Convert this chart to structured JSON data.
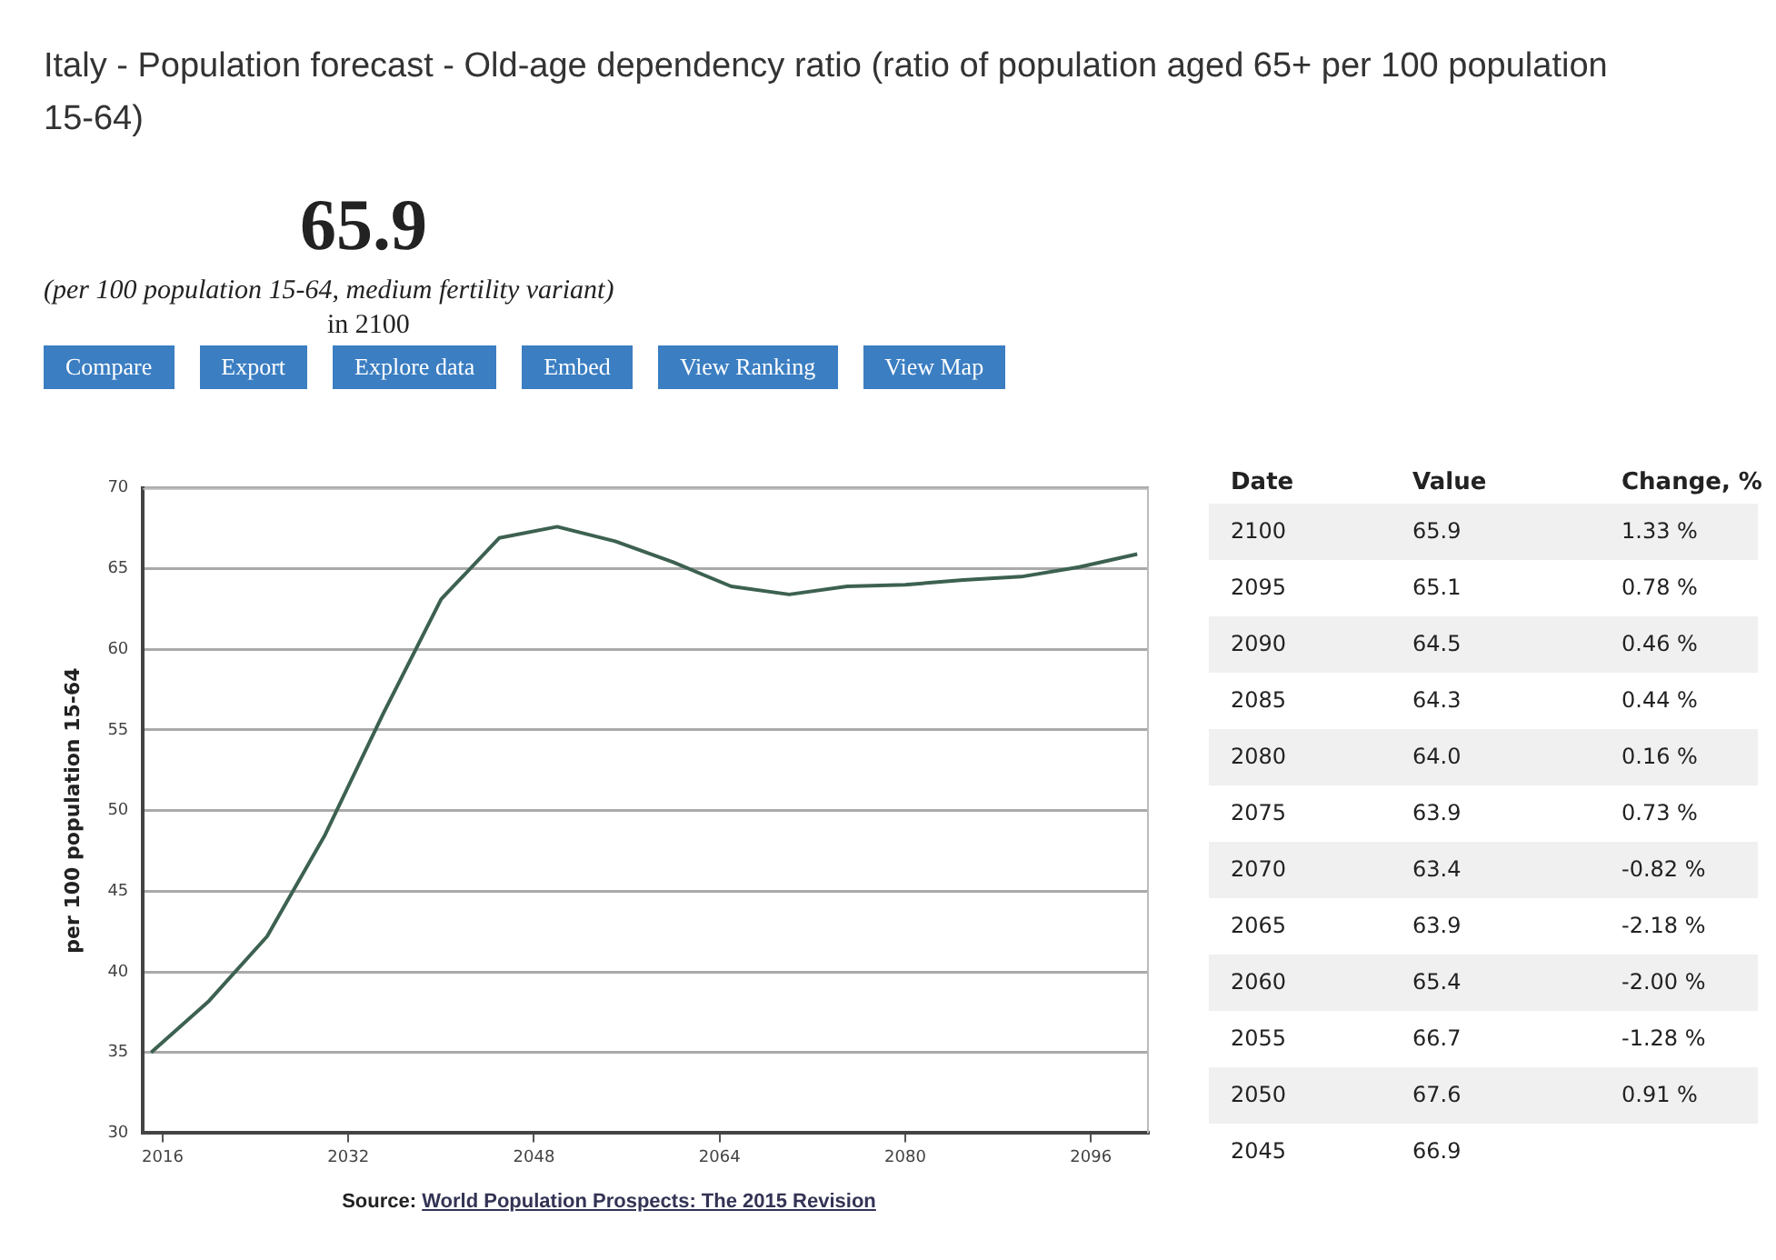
{
  "chart_data": {
    "type": "line",
    "title": "Italy - Population forecast - Old-age dependency ratio (ratio of population aged 65+ per 100 population 15-64)",
    "ylabel": "per 100 population 15-64",
    "x": [
      2015,
      2020,
      2025,
      2030,
      2035,
      2040,
      2045,
      2050,
      2055,
      2060,
      2065,
      2070,
      2075,
      2080,
      2085,
      2090,
      2095,
      2100
    ],
    "series": [
      {
        "color": "#3d6151",
        "values": [
          35.0,
          38.2,
          42.2,
          48.5,
          56.0,
          63.1,
          66.9,
          67.6,
          66.7,
          65.4,
          63.9,
          63.4,
          63.9,
          64.0,
          64.3,
          64.5,
          65.1,
          65.9
        ]
      }
    ],
    "xlim": [
      2014.3,
      2101
    ],
    "xticks": [
      2016,
      2032,
      2048,
      2064,
      2080,
      2096
    ],
    "ylim": [
      30,
      70
    ],
    "yticks": [
      30,
      35,
      40,
      45,
      50,
      55,
      60,
      65,
      70
    ],
    "grid": "y",
    "legend": false,
    "marker": "none",
    "line_style": "solid",
    "annotations": [
      "65.9",
      "(per 100 population 15-64, medium fertility variant)",
      "in 2100",
      "Compare",
      "Export",
      "Explore data",
      "Embed",
      "View Ranking",
      "View Map",
      "Source:",
      "World Population Prospects: The 2015 Revision",
      "Date",
      "Value",
      "Change, %",
      "2100",
      "65.9",
      "1.33 %",
      "2095",
      "65.1",
      "0.78 %",
      "2090",
      "64.5",
      "0.46 %",
      "2085",
      "64.3",
      "0.44 %",
      "2080",
      "64.0",
      "0.16 %",
      "2075",
      "63.9",
      "0.73 %",
      "2070",
      "63.4",
      "-0.82 %",
      "2065",
      "63.9",
      "-2.18 %",
      "2060",
      "65.4",
      "-2.00 %",
      "2055",
      "66.7",
      "-1.28 %",
      "2050",
      "67.6",
      "0.91 %",
      "2045",
      "66.9"
    ]
  }
}
